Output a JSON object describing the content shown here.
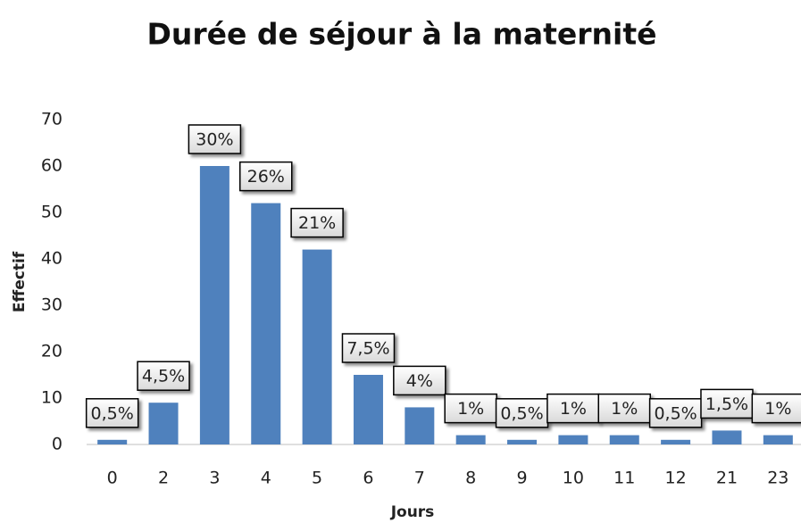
{
  "chart_data": {
    "type": "bar",
    "title": "Durée de séjour à la maternité",
    "x_label": "Jours",
    "y_label": "Effectif",
    "categories": [
      "0",
      "2",
      "3",
      "4",
      "5",
      "6",
      "7",
      "8",
      "9",
      "10",
      "11",
      "12",
      "21",
      "23"
    ],
    "values": [
      1,
      9,
      60,
      52,
      42,
      15,
      8,
      2,
      1,
      2,
      2,
      1,
      3,
      2
    ],
    "percent_labels": [
      "0,5%",
      "4,5%",
      "30%",
      "26%",
      "21%",
      "7,5%",
      "4%",
      "1%",
      "0,5%",
      "1%",
      "1%",
      "0,5%",
      "1,5%",
      "1%"
    ],
    "color": "#4f81bd",
    "ylim": [
      0,
      70
    ],
    "yticks": [
      0,
      10,
      20,
      30,
      40,
      50,
      60,
      70
    ],
    "grid": false
  }
}
